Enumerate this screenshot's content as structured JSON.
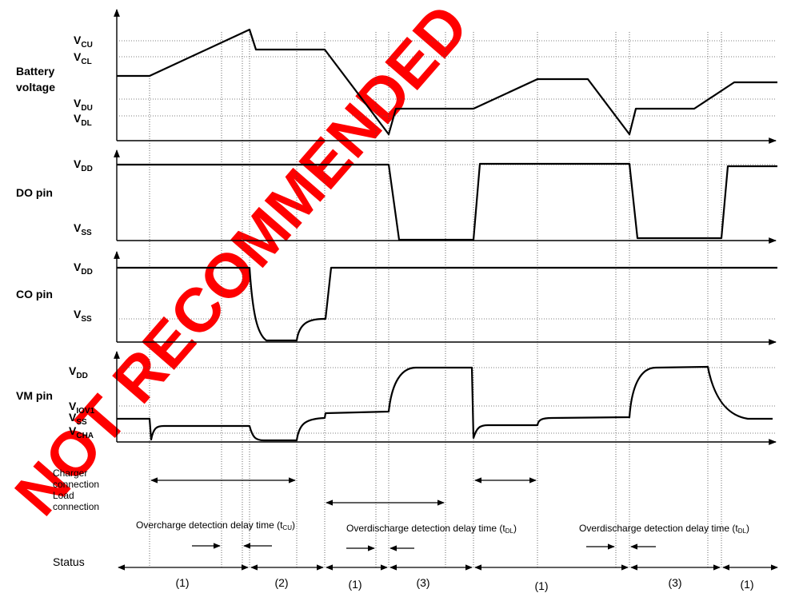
{
  "watermark": {
    "text": "NOT RECOMMENDED",
    "color": "#ff0000"
  },
  "panels": {
    "battery": {
      "title_line1": "Battery",
      "title_line2": "voltage",
      "levels": [
        {
          "base": "V",
          "sub": "CU"
        },
        {
          "base": "V",
          "sub": "CL"
        },
        {
          "base": "V",
          "sub": "DU"
        },
        {
          "base": "V",
          "sub": "DL"
        }
      ]
    },
    "do_pin": {
      "title": "DO pin",
      "levels": [
        {
          "base": "V",
          "sub": "DD"
        },
        {
          "base": "V",
          "sub": "SS"
        }
      ]
    },
    "co_pin": {
      "title": "CO pin",
      "levels": [
        {
          "base": "V",
          "sub": "DD"
        },
        {
          "base": "V",
          "sub": "SS"
        }
      ]
    },
    "vm_pin": {
      "title": "VM pin",
      "levels": [
        {
          "base": "V",
          "sub": "DD"
        },
        {
          "base": "V",
          "sub": "IOV1"
        },
        {
          "base": "V",
          "sub": "SS"
        },
        {
          "base": "V",
          "sub": "CHA"
        }
      ]
    }
  },
  "connections": {
    "charger_line1": "Charger",
    "charger_line2": "connection",
    "load_line1": "Load",
    "load_line2": "connection"
  },
  "delays": [
    {
      "text": "Overcharge detection delay time (t",
      "sub": "CU",
      "close": ")"
    },
    {
      "text": "Overdischarge detection delay time (t",
      "sub": "DL",
      "close": ")"
    },
    {
      "text": "Overdischarge detection delay time (t",
      "sub": "DL",
      "close": ")"
    }
  ],
  "status": {
    "label": "Status",
    "segments": [
      "(1)",
      "(2)",
      "(1)",
      "(3)",
      "(1)",
      "(3)",
      "(1)"
    ]
  }
}
